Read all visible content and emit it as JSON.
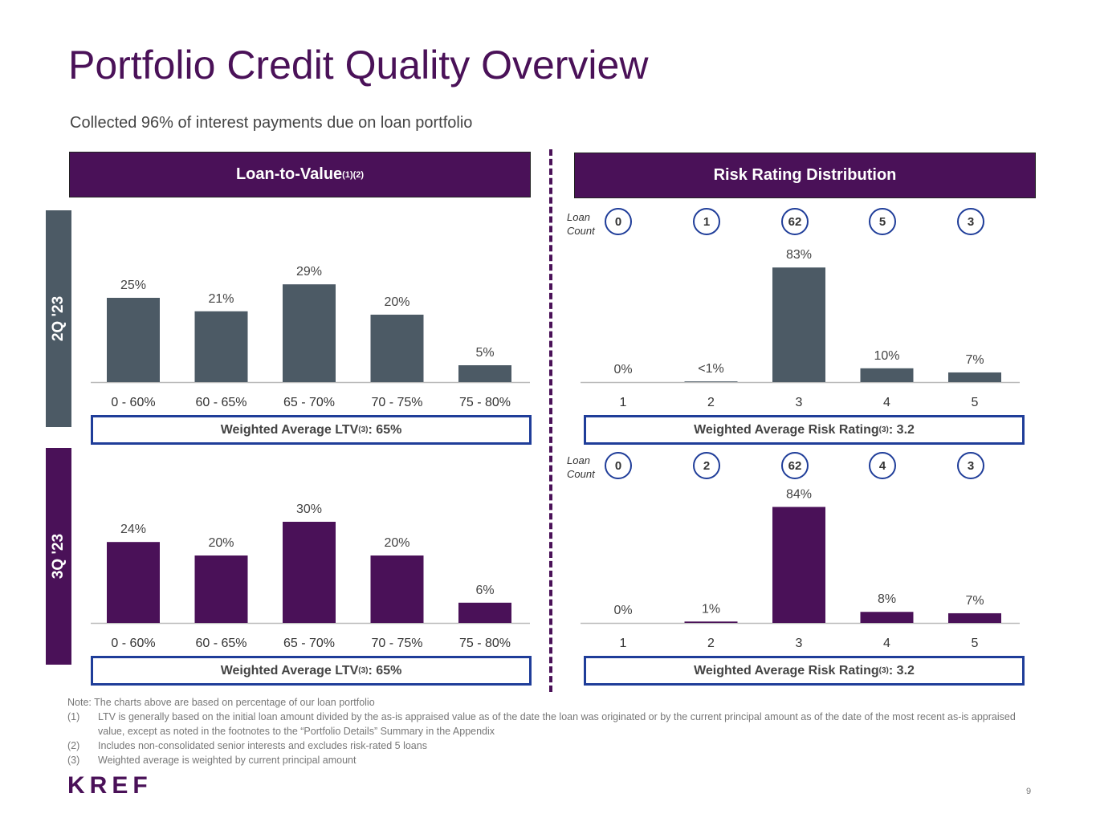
{
  "title": "Portfolio Credit Quality Overview",
  "subtitle": "Collected 96% of interest payments due on loan portfolio",
  "ltv_header": {
    "text": "Loan-to-Value",
    "sup": "(1)(2)"
  },
  "risk_header": {
    "text": "Risk Rating Distribution"
  },
  "period_labels": {
    "q2": "2Q '23",
    "q3": "3Q '23"
  },
  "weighted": {
    "ltv_prefix": "Weighted Average LTV",
    "ltv_sup": "(3)",
    "ltv_value": ": 65%",
    "risk_prefix": "Weighted Average Risk Rating",
    "risk_sup": "(3)",
    "risk_value_q2": ": 3.2",
    "risk_value_q3": ": 3.2"
  },
  "loan_count_label": [
    "Loan",
    "Count"
  ],
  "loan_counts": {
    "q2": [
      "0",
      "1",
      "62",
      "5",
      "3"
    ],
    "q3": [
      "0",
      "2",
      "62",
      "4",
      "3"
    ]
  },
  "colors": {
    "purple": "#4a1158",
    "slate": "#4c5a65",
    "blue": "#1f3d99"
  },
  "chart_data": [
    {
      "type": "bar",
      "title": "",
      "period": "2Q '23",
      "categories": [
        "0 - 60%",
        "60 - 65%",
        "65 - 70%",
        "70 - 75%",
        "75 - 80%"
      ],
      "values": [
        25,
        21,
        29,
        20,
        5
      ],
      "labels": [
        "25%",
        "21%",
        "29%",
        "20%",
        "5%"
      ],
      "color": "#4c5a65"
    },
    {
      "type": "bar",
      "title": "",
      "period": "3Q '23",
      "categories": [
        "0 - 60%",
        "60 - 65%",
        "65 - 70%",
        "70 - 75%",
        "75 - 80%"
      ],
      "values": [
        24,
        20,
        30,
        20,
        6
      ],
      "labels": [
        "24%",
        "20%",
        "30%",
        "20%",
        "6%"
      ],
      "color": "#4a1158"
    },
    {
      "type": "bar",
      "title": "",
      "period": "2Q '23",
      "categories": [
        "1",
        "2",
        "3",
        "4",
        "5"
      ],
      "values": [
        0,
        0.5,
        83,
        10,
        7
      ],
      "labels": [
        "0%",
        "<1%",
        "83%",
        "10%",
        "7%"
      ],
      "color": "#4c5a65"
    },
    {
      "type": "bar",
      "title": "",
      "period": "3Q '23",
      "categories": [
        "1",
        "2",
        "3",
        "4",
        "5"
      ],
      "values": [
        0,
        1,
        84,
        8,
        7
      ],
      "labels": [
        "0%",
        "1%",
        "84%",
        "8%",
        "7%"
      ],
      "color": "#4a1158"
    }
  ],
  "notes": {
    "note": "Note: The charts above are based on percentage of our loan portfolio",
    "footnotes": [
      {
        "num": "(1)",
        "text": "LTV is generally based on the initial loan amount divided by the as-is appraised value as of the date the loan was originated or by the current principal amount as of the date of the most recent as-is appraised value, except as noted in the footnotes to the “Portfolio Details” Summary in the Appendix"
      },
      {
        "num": "(2)",
        "text": "Includes non-consolidated senior interests and excludes risk-rated 5 loans"
      },
      {
        "num": "(3)",
        "text": "Weighted average is weighted by current principal amount"
      }
    ]
  },
  "logo": "KREF",
  "page_number": "9"
}
